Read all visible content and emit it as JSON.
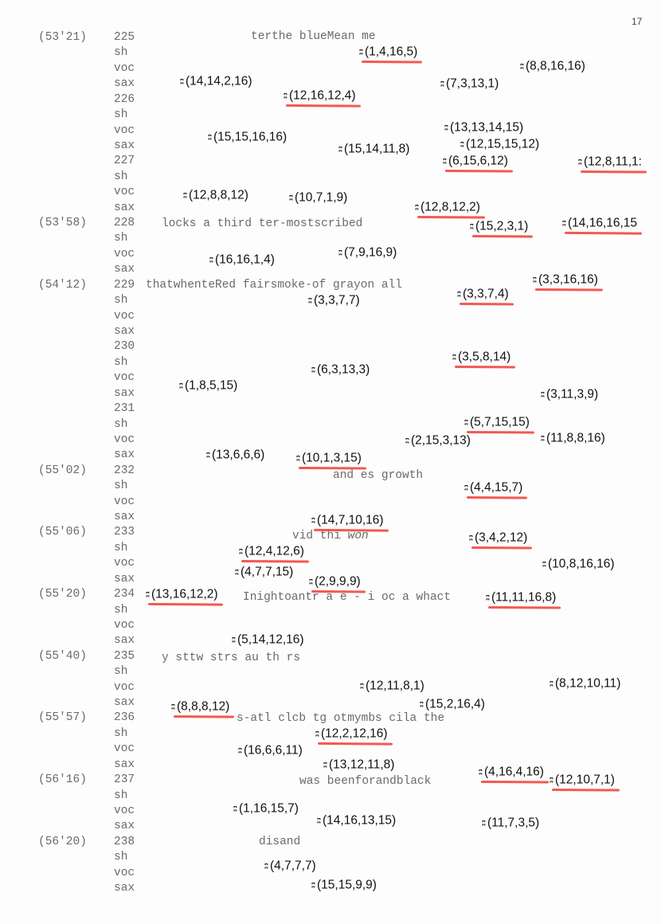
{
  "page_number": "17",
  "part_labels": [
    "sh",
    "voc",
    "sax"
  ],
  "blocks": [
    {
      "time": "(53'21)",
      "measure": "225"
    },
    {
      "time": "",
      "measure": "226"
    },
    {
      "time": "",
      "measure": "227"
    },
    {
      "time": "(53'58)",
      "measure": "228"
    },
    {
      "time": "(54'12)",
      "measure": "229"
    },
    {
      "time": "",
      "measure": "230"
    },
    {
      "time": "",
      "measure": "231"
    },
    {
      "time": "(55'02)",
      "measure": "232"
    },
    {
      "time": "(55'06)",
      "measure": "233"
    },
    {
      "time": "(55'20)",
      "measure": "234"
    },
    {
      "time": "(55'40)",
      "measure": "235"
    },
    {
      "time": "(55'57)",
      "measure": "236"
    },
    {
      "time": "(56'16)",
      "measure": "237"
    },
    {
      "time": "(56'20)",
      "measure": "238"
    }
  ],
  "lyrics": [
    "terthe blueMean me",
    "locks a third ter-mostscribed",
    "thatwhenteRed fairsmoke-of grayon all",
    "and es growth",
    "vid thi ",
    "won",
    "Inightoantr a e - i oc a whact",
    "y sttw strs au th rs",
    "s-atl clcb tg otmymbs cila the",
    "was beenforandblack",
    "disand"
  ],
  "underline_color": "#f2473f",
  "tuples": [
    {
      "text": "(1,4,16,5)",
      "underlined": true
    },
    {
      "text": "(8,8,16,16)",
      "underlined": false
    },
    {
      "text": "(14,14,2,16)",
      "underlined": false
    },
    {
      "text": "(7,3,13,1)",
      "underlined": false
    },
    {
      "text": "(12,16,12,4)",
      "underlined": true
    },
    {
      "text": "(13,13,14,15)",
      "underlined": false
    },
    {
      "text": "(15,15,16,16)",
      "underlined": false
    },
    {
      "text": "(12,15,15,12)",
      "underlined": false
    },
    {
      "text": "(15,14,11,8)",
      "underlined": false
    },
    {
      "text": "(6,15,6,12)",
      "underlined": true
    },
    {
      "text": "(12,8,11,1:",
      "underlined": true
    },
    {
      "text": "(12,8,8,12)",
      "underlined": false
    },
    {
      "text": "(10,7,1,9)",
      "underlined": false
    },
    {
      "text": "(12,8,12,2)",
      "underlined": true
    },
    {
      "text": "(15,2,3,1)",
      "underlined": true
    },
    {
      "text": "(14,16,16,15",
      "underlined": true
    },
    {
      "text": "(16,16,1,4)",
      "underlined": false
    },
    {
      "text": "(7,9,16,9)",
      "underlined": false
    },
    {
      "text": "(3,3,16,16)",
      "underlined": true
    },
    {
      "text": "(3,3,7,4)",
      "underlined": true
    },
    {
      "text": "(3,3,7,7)",
      "underlined": false
    },
    {
      "text": "(3,5,8,14)",
      "underlined": true
    },
    {
      "text": "(6,3,13,3)",
      "underlined": false
    },
    {
      "text": "(1,8,5,15)",
      "underlined": false
    },
    {
      "text": "(3,11,3,9)",
      "underlined": false
    },
    {
      "text": "(5,7,15,15)",
      "underlined": true
    },
    {
      "text": "(11,8,8,16)",
      "underlined": false
    },
    {
      "text": "(2,15,3,13)",
      "underlined": false
    },
    {
      "text": "(13,6,6,6)",
      "underlined": false
    },
    {
      "text": "(10,1,3,15)",
      "underlined": true
    },
    {
      "text": "(4,4,15,7)",
      "underlined": true
    },
    {
      "text": "(14,7,10,16)",
      "underlined": true
    },
    {
      "text": "(3,4,2,12)",
      "underlined": true
    },
    {
      "text": "(12,4,12,6)",
      "underlined": true
    },
    {
      "text": "(10,8,16,16)",
      "underlined": false
    },
    {
      "text": "(4,7,7,15)",
      "underlined": false
    },
    {
      "text": "(2,9,9,9)",
      "underlined": true
    },
    {
      "text": "(13,16,12,2)",
      "underlined": true
    },
    {
      "text": "(11,11,16,8)",
      "underlined": true
    },
    {
      "text": "(5,14,12,16)",
      "underlined": false
    },
    {
      "text": "(12,11,8,1)",
      "underlined": false
    },
    {
      "text": "(8,12,10,11)",
      "underlined": false
    },
    {
      "text": "(15,2,16,4)",
      "underlined": false
    },
    {
      "text": "(8,8,8,12)",
      "underlined": true
    },
    {
      "text": "(12,2,12,16)",
      "underlined": true
    },
    {
      "text": "(16,6,6,11)",
      "underlined": false
    },
    {
      "text": "(13,12,11,8)",
      "underlined": false
    },
    {
      "text": "(4,16,4,16)",
      "underlined": true
    },
    {
      "text": "(12,10,7,1)",
      "underlined": true
    },
    {
      "text": "(1,16,15,7)",
      "underlined": false
    },
    {
      "text": "(14,16,13,15)",
      "underlined": false
    },
    {
      "text": "(11,7,3,5)",
      "underlined": false
    },
    {
      "text": "(4,7,7,7)",
      "underlined": false
    },
    {
      "text": "(15,15,9,9)",
      "underlined": false
    }
  ]
}
